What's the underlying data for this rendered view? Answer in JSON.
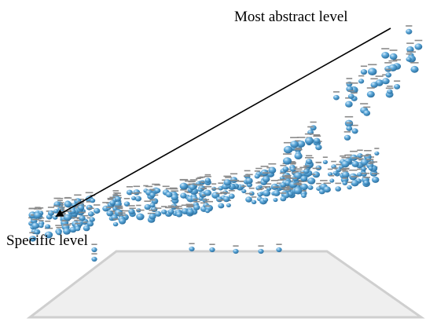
{
  "labels": {
    "top": "Most abstract level",
    "bottom": "Specific level"
  },
  "colors": {
    "node": "#5ba7d9",
    "node_dark": "#2b6f9f",
    "plane_fill": "#efefef",
    "plane_edge": "#c9c9c9",
    "arrow": "#000000"
  }
}
